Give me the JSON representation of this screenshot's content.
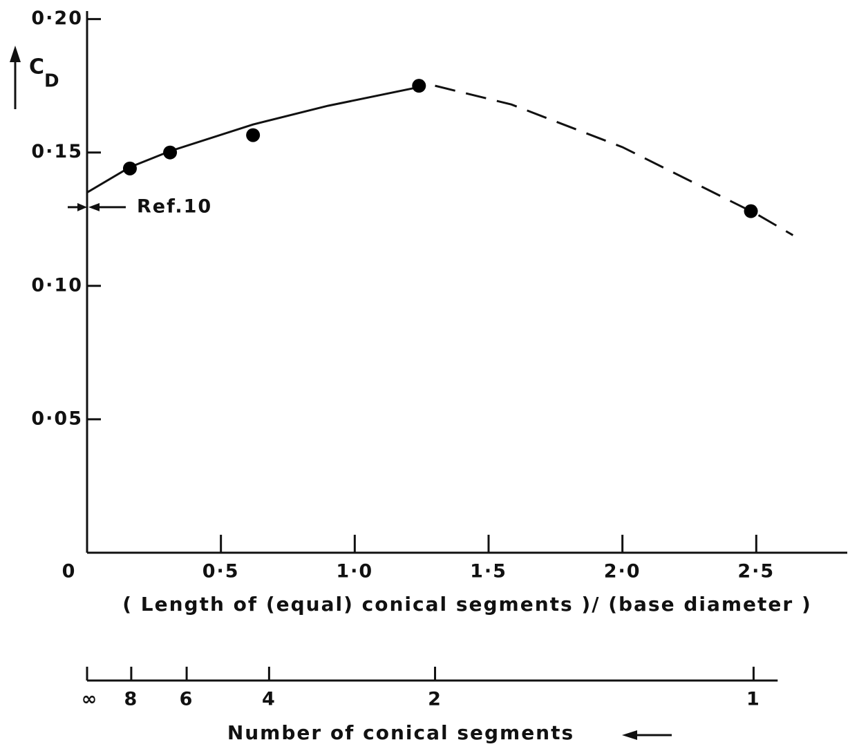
{
  "chart_data": {
    "type": "line",
    "ylabel": "C",
    "ylabel_sub": "D",
    "xlabel": "( Length of (equal) conical segments )/ (base diameter )",
    "xlim": [
      0,
      2.84
    ],
    "ylim": [
      0,
      0.203
    ],
    "xticks": [
      0,
      {
        "value": 0.5,
        "label": "0·5"
      },
      {
        "value": 1.0,
        "label": "1·0"
      },
      {
        "value": 1.5,
        "label": "1·5"
      },
      {
        "value": 2.0,
        "label": "2·0"
      },
      {
        "value": 2.5,
        "label": "2·5"
      }
    ],
    "yticks": [
      {
        "value": 0.05,
        "label": "0·05"
      },
      {
        "value": 0.1,
        "label": "0·10"
      },
      {
        "value": 0.15,
        "label": "0·15"
      },
      {
        "value": 0.2,
        "label": "0·20"
      }
    ],
    "points": {
      "x": [
        0.16,
        0.31,
        0.62,
        1.24,
        2.48
      ],
      "values": [
        0.144,
        0.15,
        0.1565,
        0.175,
        0.128
      ],
      "color": "#000000"
    },
    "series": [
      {
        "style": "solid",
        "color": "#000000",
        "x": [
          0,
          0.16,
          0.31,
          0.62,
          0.9,
          1.24
        ],
        "values": [
          0.135,
          0.1445,
          0.1505,
          0.1605,
          0.1675,
          0.1745
        ]
      },
      {
        "style": "dashed",
        "color": "#000000",
        "x": [
          1.3,
          1.585,
          2.0,
          2.5,
          2.637
        ],
        "values": [
          0.175,
          0.168,
          0.152,
          0.127,
          0.119
        ]
      }
    ],
    "annotations": [
      {
        "text": "Ref.10",
        "y": 0.1295
      }
    ],
    "x2label": "Number of conical segments",
    "x2lim": [
      0,
      2.58
    ],
    "x2ticks": [
      {
        "value": 0,
        "label": "∞"
      },
      {
        "value": 0.165,
        "label": "8"
      },
      {
        "value": 0.372,
        "label": "6"
      },
      {
        "value": 0.68,
        "label": "4"
      },
      {
        "value": 1.3,
        "label": "2"
      },
      {
        "value": 2.49,
        "label": "1"
      }
    ]
  }
}
